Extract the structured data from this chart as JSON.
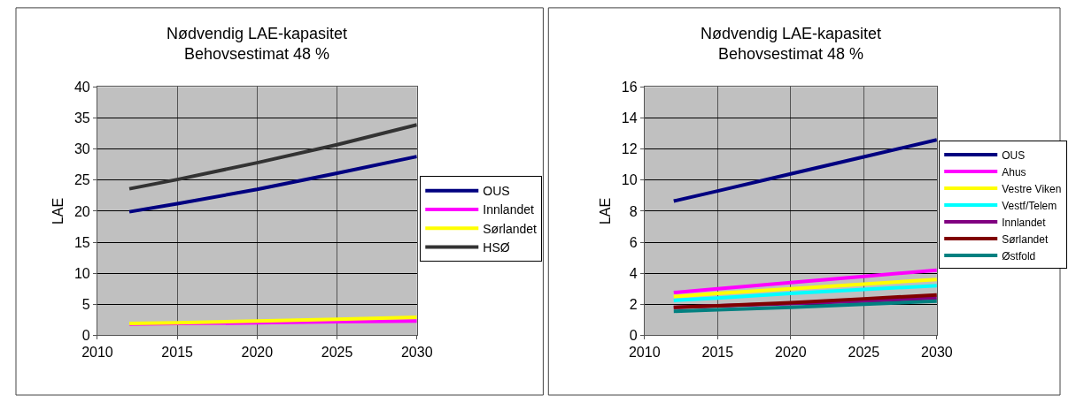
{
  "chart_data": [
    {
      "type": "line",
      "title": "Nødvendig LAE-kapasitet\nBehovsestimat 48 %",
      "ylabel": "LAE",
      "x": [
        2012,
        2015,
        2020,
        2025,
        2030
      ],
      "xlim": [
        2010,
        2030
      ],
      "xticks": [
        2010,
        2015,
        2020,
        2025,
        2030
      ],
      "ylim": [
        0,
        40
      ],
      "yticks": [
        0,
        5,
        10,
        15,
        20,
        25,
        30,
        35,
        40
      ],
      "grid": true,
      "legend": "right",
      "marker": "none",
      "line_style": "solid",
      "series": [
        {
          "name": "OUS",
          "color": "#000080",
          "values": [
            19.9,
            21.2,
            23.5,
            26.1,
            28.8
          ]
        },
        {
          "name": "Innlandet",
          "color": "#ff00ff",
          "values": [
            1.8,
            1.9,
            2.0,
            2.2,
            2.3
          ]
        },
        {
          "name": "Sørlandet",
          "color": "#ffff00",
          "values": [
            1.9,
            2.0,
            2.3,
            2.6,
            2.9
          ]
        },
        {
          "name": "HSØ",
          "color": "#333333",
          "values": [
            23.6,
            25.1,
            27.8,
            30.7,
            33.9
          ]
        }
      ]
    },
    {
      "type": "line",
      "title": "Nødvendig LAE-kapasitet\nBehovsestimat 48 %",
      "ylabel": "LAE",
      "x": [
        2012,
        2015,
        2020,
        2025,
        2030
      ],
      "xlim": [
        2010,
        2030
      ],
      "xticks": [
        2010,
        2015,
        2020,
        2025,
        2030
      ],
      "ylim": [
        0,
        16
      ],
      "yticks": [
        0,
        2,
        4,
        6,
        8,
        10,
        12,
        14,
        16
      ],
      "grid": true,
      "legend": "right",
      "marker": "none",
      "line_style": "solid",
      "series": [
        {
          "name": "OUS",
          "color": "#000080",
          "values": [
            8.65,
            9.3,
            10.4,
            11.5,
            12.6
          ]
        },
        {
          "name": "Ahus",
          "color": "#ff00ff",
          "values": [
            2.75,
            3.0,
            3.4,
            3.8,
            4.2
          ]
        },
        {
          "name": "Vestre Viken",
          "color": "#ffff00",
          "values": [
            2.5,
            2.7,
            3.0,
            3.3,
            3.6
          ]
        },
        {
          "name": "Vestf/Telem",
          "color": "#00ffff",
          "values": [
            2.25,
            2.4,
            2.7,
            2.95,
            3.2
          ]
        },
        {
          "name": "Innlandet",
          "color": "#800080",
          "values": [
            1.8,
            1.9,
            2.05,
            2.2,
            2.4
          ]
        },
        {
          "name": "Sørlandet",
          "color": "#800000",
          "values": [
            1.8,
            1.9,
            2.1,
            2.35,
            2.6
          ]
        },
        {
          "name": "Østfold",
          "color": "#008080",
          "values": [
            1.55,
            1.65,
            1.8,
            2.0,
            2.2
          ]
        }
      ]
    }
  ]
}
